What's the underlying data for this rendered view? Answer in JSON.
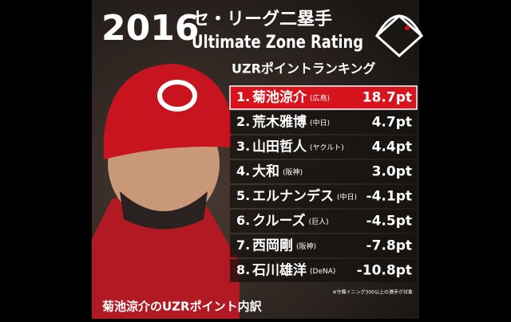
{
  "header": {
    "year": "2016",
    "league": "セ・リーグ二塁手",
    "title": "Ultimate Zone Rating",
    "subtitle": "UZRポイントランキング"
  },
  "table": {
    "rows": [
      {
        "rank": "1.",
        "name": "菊池涼介",
        "team": "(広島)",
        "value": "18.7pt"
      },
      {
        "rank": "2.",
        "name": "荒木雅博",
        "team": "(中日)",
        "value": "4.7pt"
      },
      {
        "rank": "3.",
        "name": "山田哲人",
        "team": "(ヤクルト)",
        "value": "4.4pt"
      },
      {
        "rank": "4.",
        "name": "大和",
        "team": "(阪神)",
        "value": "3.0pt"
      },
      {
        "rank": "5.",
        "name": "エルナンデス",
        "team": "(中日)",
        "value": "-4.1pt"
      },
      {
        "rank": "6.",
        "name": "クルーズ",
        "team": "(巨人)",
        "value": "-4.5pt"
      },
      {
        "rank": "7.",
        "name": "西岡剛",
        "team": "(阪神)",
        "value": "-7.8pt"
      },
      {
        "rank": "8.",
        "name": "石川雄洋",
        "team": "(DeNA)",
        "value": "-10.8pt"
      }
    ]
  },
  "note": "※守備イニング300以上の選手が対象",
  "footer": "菊池涼介のUZRポイント内訳"
}
